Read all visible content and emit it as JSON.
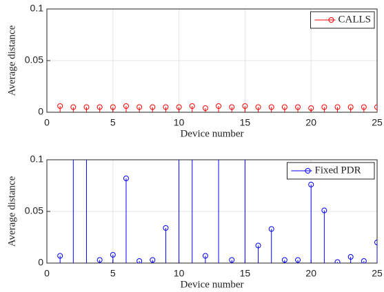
{
  "chart_data": [
    {
      "type": "stem",
      "xlabel": "Device number",
      "ylabel": "Average distance",
      "x": [
        1,
        2,
        3,
        4,
        5,
        6,
        7,
        8,
        9,
        10,
        11,
        12,
        13,
        14,
        15,
        16,
        17,
        18,
        19,
        20,
        21,
        22,
        23,
        24,
        25
      ],
      "series": [
        {
          "name": "CALLS",
          "color": "#ff0000",
          "values": [
            0.006,
            0.005,
            0.005,
            0.005,
            0.005,
            0.006,
            0.005,
            0.005,
            0.005,
            0.005,
            0.006,
            0.004,
            0.006,
            0.005,
            0.006,
            0.005,
            0.005,
            0.005,
            0.005,
            0.004,
            0.005,
            0.005,
            0.005,
            0.005,
            0.005
          ]
        }
      ],
      "xlim": [
        0,
        25
      ],
      "xticks": [
        0,
        5,
        10,
        15,
        20,
        25
      ],
      "ylim": [
        0,
        0.1
      ],
      "yticks": [
        0,
        0.05,
        0.1
      ],
      "grid": true,
      "legend": "upper right"
    },
    {
      "type": "stem",
      "xlabel": "Device number",
      "ylabel": "Average distance",
      "x": [
        1,
        2,
        3,
        4,
        5,
        6,
        7,
        8,
        9,
        10,
        11,
        12,
        13,
        14,
        15,
        16,
        17,
        18,
        19,
        20,
        21,
        22,
        23,
        24,
        25
      ],
      "series": [
        {
          "name": "Fixed PDR",
          "color": "#0000ff",
          "values": [
            0.007,
            0.15,
            0.15,
            0.003,
            0.008,
            0.082,
            0.002,
            0.003,
            0.034,
            0.15,
            0.15,
            0.007,
            0.15,
            0.003,
            0.15,
            0.017,
            0.033,
            0.003,
            0.003,
            0.076,
            0.051,
            0.001,
            0.006,
            0.002,
            0.02
          ]
        }
      ],
      "xlim": [
        0,
        25
      ],
      "xticks": [
        0,
        5,
        10,
        15,
        20,
        25
      ],
      "ylim": [
        0,
        0.1
      ],
      "yticks": [
        0,
        0.05,
        0.1
      ],
      "grid": true,
      "legend": "upper right"
    }
  ]
}
